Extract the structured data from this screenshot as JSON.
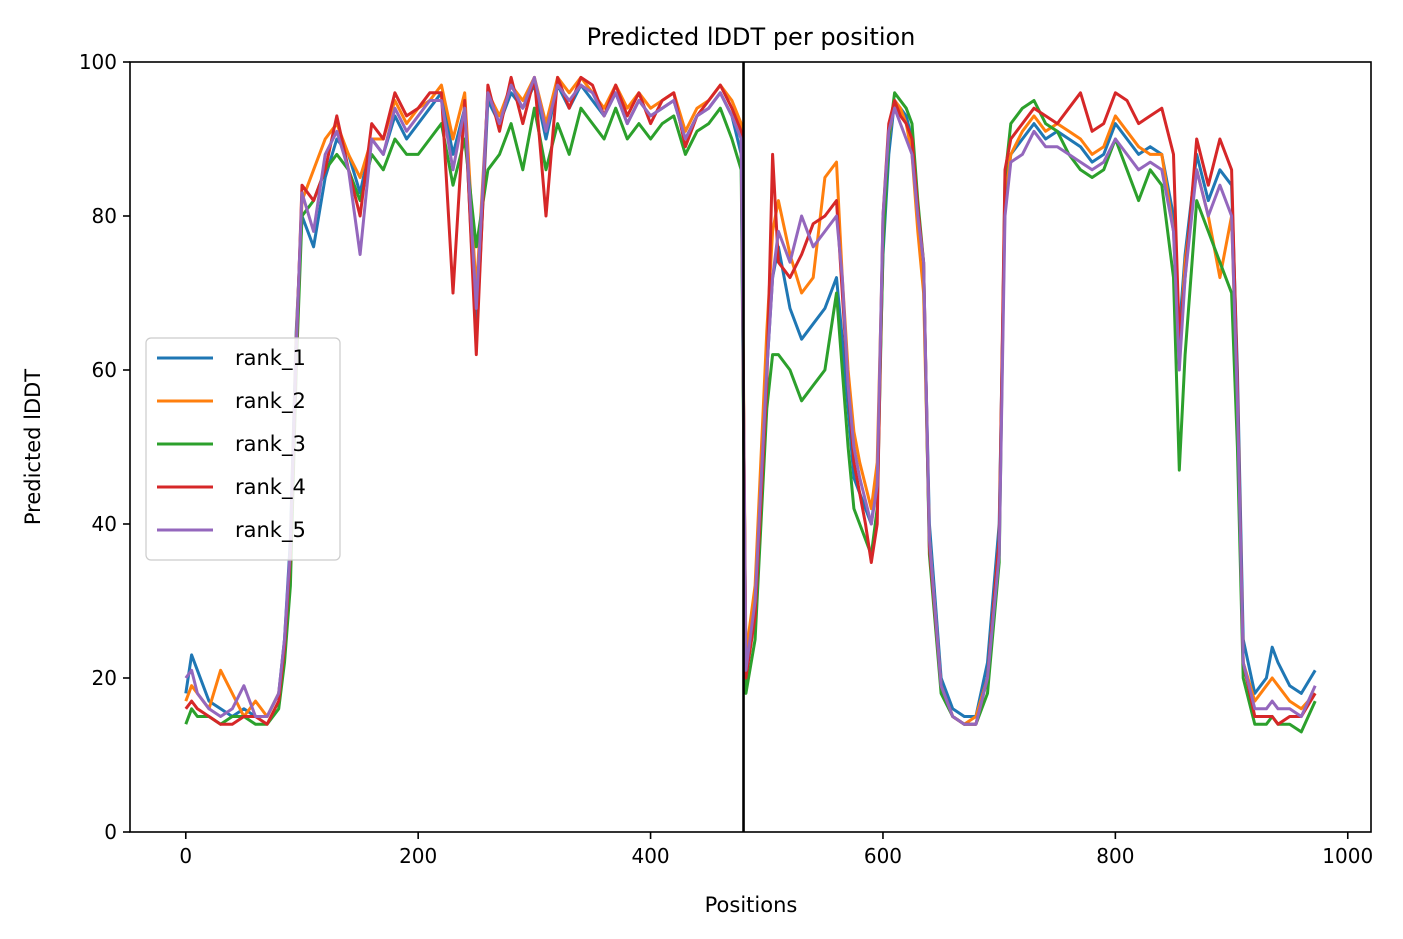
{
  "chart_data": {
    "type": "line",
    "title": "Predicted lDDT per position",
    "xlabel": "Positions",
    "ylabel": "Predicted lDDT",
    "xlim": [
      -48,
      1020
    ],
    "ylim": [
      0,
      100
    ],
    "xticks": [
      0,
      200,
      400,
      600,
      800,
      1000
    ],
    "yticks": [
      0,
      20,
      40,
      60,
      80,
      100
    ],
    "grid": false,
    "legend_position": "center-left",
    "vline": {
      "x": 480,
      "color": "#000000"
    },
    "series": [
      {
        "name": "rank_1",
        "color": "#1f77b4",
        "x": [
          0,
          5,
          10,
          20,
          30,
          40,
          50,
          60,
          70,
          80,
          85,
          90,
          95,
          100,
          110,
          120,
          130,
          140,
          150,
          160,
          170,
          180,
          190,
          200,
          210,
          220,
          230,
          240,
          250,
          260,
          270,
          280,
          290,
          300,
          310,
          320,
          330,
          340,
          350,
          360,
          370,
          380,
          390,
          400,
          410,
          420,
          430,
          440,
          450,
          460,
          470,
          478,
          482,
          490,
          500,
          505,
          510,
          520,
          530,
          540,
          550,
          560,
          565,
          570,
          575,
          580,
          585,
          590,
          595,
          600,
          605,
          610,
          615,
          620,
          625,
          630,
          635,
          640,
          650,
          660,
          670,
          680,
          690,
          700,
          705,
          710,
          720,
          730,
          740,
          750,
          760,
          770,
          780,
          790,
          800,
          810,
          820,
          830,
          840,
          850,
          855,
          860,
          870,
          880,
          890,
          900,
          905,
          910,
          920,
          930,
          935,
          940,
          950,
          960,
          972
        ],
        "y": [
          18,
          23,
          21,
          17,
          16,
          15,
          16,
          15,
          15,
          18,
          25,
          38,
          65,
          80,
          76,
          85,
          90,
          88,
          83,
          90,
          88,
          93,
          90,
          92,
          94,
          96,
          88,
          94,
          64,
          95,
          92,
          96,
          94,
          97,
          90,
          97,
          94,
          97,
          95,
          93,
          96,
          92,
          95,
          93,
          94,
          95,
          90,
          93,
          94,
          96,
          93,
          88,
          22,
          30,
          60,
          72,
          76,
          68,
          64,
          66,
          68,
          72,
          64,
          55,
          46,
          44,
          42,
          40,
          46,
          75,
          88,
          95,
          94,
          93,
          90,
          80,
          72,
          40,
          20,
          16,
          15,
          15,
          22,
          40,
          82,
          88,
          90,
          92,
          90,
          91,
          90,
          89,
          87,
          88,
          92,
          90,
          88,
          89,
          88,
          80,
          65,
          75,
          88,
          82,
          86,
          84,
          60,
          25,
          18,
          20,
          24,
          22,
          19,
          18,
          21
        ]
      },
      {
        "name": "rank_2",
        "color": "#ff7f0e",
        "x": [
          0,
          5,
          10,
          20,
          30,
          40,
          50,
          60,
          70,
          80,
          85,
          90,
          95,
          100,
          110,
          120,
          130,
          140,
          150,
          160,
          170,
          180,
          190,
          200,
          210,
          220,
          230,
          240,
          250,
          260,
          270,
          280,
          290,
          300,
          310,
          320,
          330,
          340,
          350,
          360,
          370,
          380,
          390,
          400,
          410,
          420,
          430,
          440,
          450,
          460,
          470,
          478,
          482,
          490,
          500,
          505,
          510,
          520,
          530,
          540,
          550,
          560,
          565,
          570,
          575,
          580,
          585,
          590,
          595,
          600,
          605,
          610,
          615,
          620,
          625,
          630,
          635,
          640,
          650,
          660,
          670,
          680,
          690,
          700,
          705,
          710,
          720,
          730,
          740,
          750,
          760,
          770,
          780,
          790,
          800,
          810,
          820,
          830,
          840,
          850,
          855,
          860,
          870,
          880,
          890,
          900,
          905,
          910,
          920,
          930,
          935,
          940,
          950,
          960,
          972
        ],
        "y": [
          17,
          19,
          18,
          16,
          21,
          18,
          15,
          17,
          15,
          18,
          24,
          36,
          64,
          82,
          86,
          90,
          92,
          88,
          85,
          90,
          90,
          95,
          92,
          94,
          95,
          97,
          90,
          96,
          70,
          96,
          93,
          97,
          95,
          98,
          92,
          98,
          96,
          98,
          96,
          94,
          97,
          94,
          96,
          94,
          95,
          96,
          91,
          94,
          95,
          97,
          95,
          92,
          23,
          32,
          65,
          78,
          82,
          75,
          70,
          72,
          85,
          87,
          72,
          60,
          52,
          48,
          45,
          42,
          48,
          78,
          90,
          95,
          94,
          92,
          88,
          78,
          70,
          38,
          19,
          15,
          14,
          15,
          20,
          38,
          83,
          88,
          91,
          93,
          91,
          92,
          91,
          90,
          88,
          89,
          93,
          91,
          89,
          88,
          88,
          78,
          62,
          74,
          86,
          80,
          72,
          80,
          55,
          22,
          17,
          19,
          20,
          19,
          17,
          16,
          18
        ]
      },
      {
        "name": "rank_3",
        "color": "#2ca02c",
        "x": [
          0,
          5,
          10,
          20,
          30,
          40,
          50,
          60,
          70,
          80,
          85,
          90,
          95,
          100,
          110,
          120,
          130,
          140,
          150,
          160,
          170,
          180,
          190,
          200,
          210,
          220,
          230,
          240,
          250,
          260,
          270,
          280,
          290,
          300,
          310,
          320,
          330,
          340,
          350,
          360,
          370,
          380,
          390,
          400,
          410,
          420,
          430,
          440,
          450,
          460,
          470,
          478,
          482,
          490,
          500,
          505,
          510,
          520,
          530,
          540,
          550,
          560,
          565,
          570,
          575,
          580,
          585,
          590,
          595,
          600,
          605,
          610,
          615,
          620,
          625,
          630,
          635,
          640,
          650,
          660,
          670,
          680,
          690,
          700,
          705,
          710,
          720,
          730,
          740,
          750,
          760,
          770,
          780,
          790,
          800,
          810,
          820,
          830,
          840,
          850,
          855,
          860,
          870,
          880,
          890,
          900,
          905,
          910,
          920,
          930,
          935,
          940,
          950,
          960,
          972
        ],
        "y": [
          14,
          16,
          15,
          15,
          14,
          15,
          15,
          14,
          14,
          16,
          22,
          32,
          60,
          80,
          82,
          86,
          88,
          86,
          82,
          88,
          86,
          90,
          88,
          88,
          90,
          92,
          84,
          90,
          76,
          86,
          88,
          92,
          86,
          94,
          86,
          92,
          88,
          94,
          92,
          90,
          94,
          90,
          92,
          90,
          92,
          93,
          88,
          91,
          92,
          94,
          90,
          86,
          18,
          25,
          55,
          62,
          62,
          60,
          56,
          58,
          60,
          70,
          60,
          50,
          42,
          40,
          38,
          36,
          42,
          76,
          90,
          96,
          95,
          94,
          92,
          82,
          74,
          36,
          18,
          15,
          14,
          14,
          18,
          35,
          85,
          92,
          94,
          95,
          92,
          91,
          88,
          86,
          85,
          86,
          90,
          86,
          82,
          86,
          84,
          72,
          47,
          62,
          82,
          78,
          74,
          70,
          50,
          20,
          14,
          14,
          15,
          14,
          14,
          13,
          17
        ]
      },
      {
        "name": "rank_4",
        "color": "#d62728",
        "x": [
          0,
          5,
          10,
          20,
          30,
          40,
          50,
          60,
          70,
          80,
          85,
          90,
          95,
          100,
          110,
          120,
          130,
          140,
          150,
          160,
          170,
          180,
          190,
          200,
          210,
          220,
          230,
          240,
          250,
          260,
          270,
          280,
          290,
          300,
          310,
          320,
          330,
          340,
          350,
          360,
          370,
          380,
          390,
          400,
          410,
          420,
          430,
          440,
          450,
          460,
          470,
          478,
          482,
          490,
          500,
          505,
          510,
          520,
          530,
          540,
          550,
          560,
          565,
          570,
          575,
          580,
          585,
          590,
          595,
          600,
          605,
          610,
          615,
          620,
          625,
          630,
          635,
          640,
          650,
          660,
          670,
          680,
          690,
          700,
          705,
          710,
          720,
          730,
          740,
          750,
          760,
          770,
          780,
          790,
          800,
          810,
          820,
          830,
          840,
          850,
          855,
          860,
          870,
          880,
          890,
          900,
          905,
          910,
          920,
          930,
          935,
          940,
          950,
          960,
          972
        ],
        "y": [
          16,
          17,
          16,
          15,
          14,
          14,
          15,
          15,
          14,
          17,
          24,
          36,
          62,
          84,
          82,
          86,
          93,
          86,
          80,
          92,
          90,
          96,
          93,
          94,
          96,
          96,
          70,
          95,
          62,
          97,
          91,
          98,
          92,
          98,
          80,
          98,
          94,
          98,
          97,
          93,
          97,
          93,
          96,
          92,
          95,
          96,
          89,
          93,
          95,
          97,
          94,
          91,
          20,
          28,
          58,
          88,
          74,
          72,
          75,
          79,
          80,
          82,
          70,
          58,
          48,
          44,
          40,
          35,
          40,
          80,
          92,
          95,
          93,
          92,
          90,
          81,
          74,
          37,
          19,
          15,
          14,
          14,
          20,
          38,
          86,
          90,
          92,
          94,
          93,
          92,
          94,
          96,
          91,
          92,
          96,
          95,
          92,
          93,
          94,
          88,
          64,
          72,
          90,
          84,
          90,
          86,
          58,
          22,
          15,
          15,
          15,
          14,
          15,
          15,
          18
        ]
      },
      {
        "name": "rank_5",
        "color": "#9467bd",
        "x": [
          0,
          5,
          10,
          20,
          30,
          40,
          50,
          60,
          70,
          80,
          85,
          90,
          95,
          100,
          110,
          120,
          130,
          140,
          150,
          160,
          170,
          180,
          190,
          200,
          210,
          220,
          230,
          240,
          250,
          260,
          270,
          280,
          290,
          300,
          310,
          320,
          330,
          340,
          350,
          360,
          370,
          380,
          390,
          400,
          410,
          420,
          430,
          440,
          450,
          460,
          470,
          478,
          482,
          490,
          500,
          505,
          510,
          520,
          530,
          540,
          550,
          560,
          565,
          570,
          575,
          580,
          585,
          590,
          595,
          600,
          605,
          610,
          615,
          620,
          625,
          630,
          635,
          640,
          650,
          660,
          670,
          680,
          690,
          700,
          705,
          710,
          720,
          730,
          740,
          750,
          760,
          770,
          780,
          790,
          800,
          810,
          820,
          830,
          840,
          850,
          855,
          860,
          870,
          880,
          890,
          900,
          905,
          910,
          920,
          930,
          935,
          940,
          950,
          960,
          972
        ],
        "y": [
          20,
          21,
          18,
          16,
          15,
          16,
          19,
          15,
          15,
          18,
          25,
          37,
          63,
          83,
          78,
          88,
          91,
          86,
          75,
          90,
          88,
          94,
          91,
          93,
          95,
          95,
          86,
          94,
          68,
          96,
          92,
          97,
          94,
          98,
          91,
          97,
          95,
          97,
          96,
          93,
          96,
          92,
          95,
          93,
          94,
          95,
          90,
          93,
          94,
          96,
          93,
          90,
          21,
          30,
          60,
          72,
          78,
          74,
          80,
          76,
          78,
          80,
          72,
          58,
          50,
          46,
          43,
          40,
          45,
          80,
          91,
          94,
          92,
          90,
          88,
          80,
          74,
          38,
          19,
          15,
          14,
          14,
          20,
          36,
          80,
          87,
          88,
          91,
          89,
          89,
          88,
          87,
          86,
          87,
          90,
          88,
          86,
          87,
          86,
          78,
          60,
          72,
          86,
          80,
          84,
          80,
          56,
          22,
          16,
          16,
          17,
          16,
          16,
          15,
          19
        ]
      }
    ]
  }
}
